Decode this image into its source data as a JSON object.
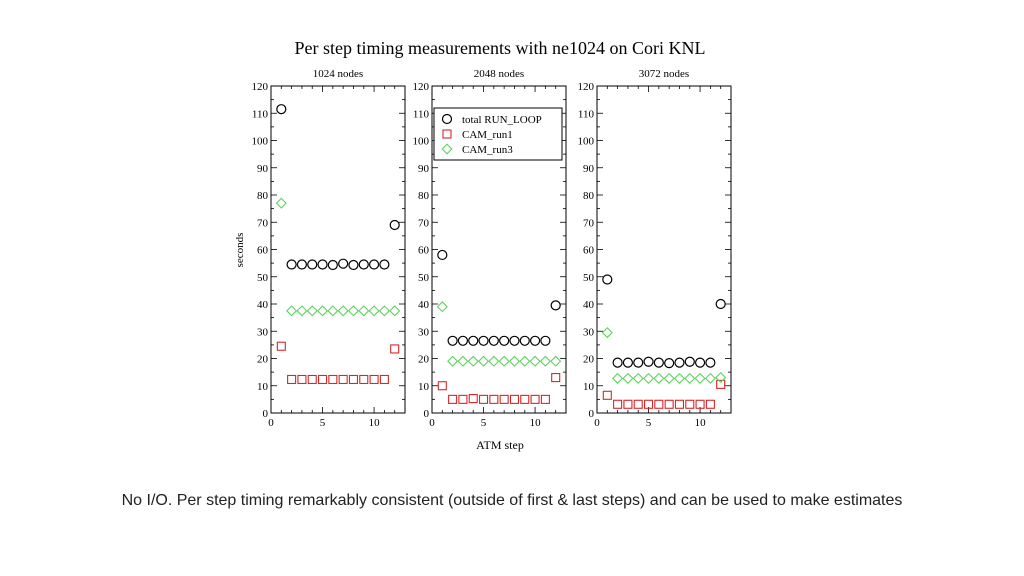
{
  "slide": {
    "caption": "No I/O. Per step timing remarkably consistent (outside of first & last steps) and can be used to make estimates"
  },
  "chart_data": {
    "type": "scatter",
    "title": "Per step timing measurements with ne1024 on Cori KNL",
    "xlabel": "ATM step",
    "ylabel": "seconds",
    "xlim": [
      0,
      13
    ],
    "ylim": [
      0,
      120
    ],
    "x_ticks": [
      "0",
      "5",
      "10"
    ],
    "y_ticks": [
      "0",
      "10",
      "20",
      "30",
      "40",
      "50",
      "60",
      "70",
      "80",
      "90",
      "100",
      "110",
      "120"
    ],
    "legend": {
      "position": "top-left of middle panel",
      "entries": [
        "total RUN_LOOP",
        "CAM_run1",
        "CAM_run3"
      ]
    },
    "colors": {
      "total": "#000000",
      "run1": "#d62828",
      "run3": "#5fd35f"
    },
    "x": [
      1,
      2,
      3,
      4,
      5,
      6,
      7,
      8,
      9,
      10,
      11,
      12
    ],
    "panels": [
      {
        "title": "1024 nodes",
        "series": [
          {
            "name": "total RUN_LOOP",
            "marker": "circle",
            "values": [
              111.5,
              54.5,
              54.5,
              54.5,
              54.5,
              54.3,
              54.8,
              54.3,
              54.5,
              54.5,
              54.5,
              69
            ]
          },
          {
            "name": "CAM_run1",
            "marker": "square",
            "values": [
              24.5,
              12.3,
              12.3,
              12.3,
              12.3,
              12.3,
              12.3,
              12.3,
              12.3,
              12.3,
              12.3,
              23.5
            ]
          },
          {
            "name": "CAM_run3",
            "marker": "diamond",
            "values": [
              77,
              37.5,
              37.5,
              37.5,
              37.5,
              37.5,
              37.5,
              37.5,
              37.5,
              37.5,
              37.5,
              37.5
            ]
          }
        ]
      },
      {
        "title": "2048 nodes",
        "series": [
          {
            "name": "total RUN_LOOP",
            "marker": "circle",
            "values": [
              58,
              26.5,
              26.5,
              26.5,
              26.5,
              26.5,
              26.5,
              26.5,
              26.5,
              26.5,
              26.5,
              39.5
            ]
          },
          {
            "name": "CAM_run1",
            "marker": "square",
            "values": [
              10,
              5,
              5,
              5.3,
              5,
              5,
              5,
              5,
              5,
              5,
              5,
              13
            ]
          },
          {
            "name": "CAM_run3",
            "marker": "diamond",
            "values": [
              39,
              19,
              19,
              19,
              19,
              19,
              19,
              19,
              19,
              19,
              19,
              19
            ]
          }
        ]
      },
      {
        "title": "3072 nodes",
        "series": [
          {
            "name": "total RUN_LOOP",
            "marker": "circle",
            "values": [
              49,
              18.5,
              18.5,
              18.5,
              18.8,
              18.5,
              18.3,
              18.5,
              18.8,
              18.5,
              18.5,
              40
            ]
          },
          {
            "name": "CAM_run1",
            "marker": "square",
            "values": [
              6.5,
              3.2,
              3.2,
              3.2,
              3.2,
              3.2,
              3.2,
              3.2,
              3.2,
              3.2,
              3.2,
              10.5
            ]
          },
          {
            "name": "CAM_run3",
            "marker": "diamond",
            "values": [
              29.5,
              12.7,
              12.7,
              12.7,
              12.7,
              12.7,
              12.7,
              12.7,
              12.7,
              12.7,
              12.7,
              13
            ]
          }
        ]
      }
    ]
  }
}
